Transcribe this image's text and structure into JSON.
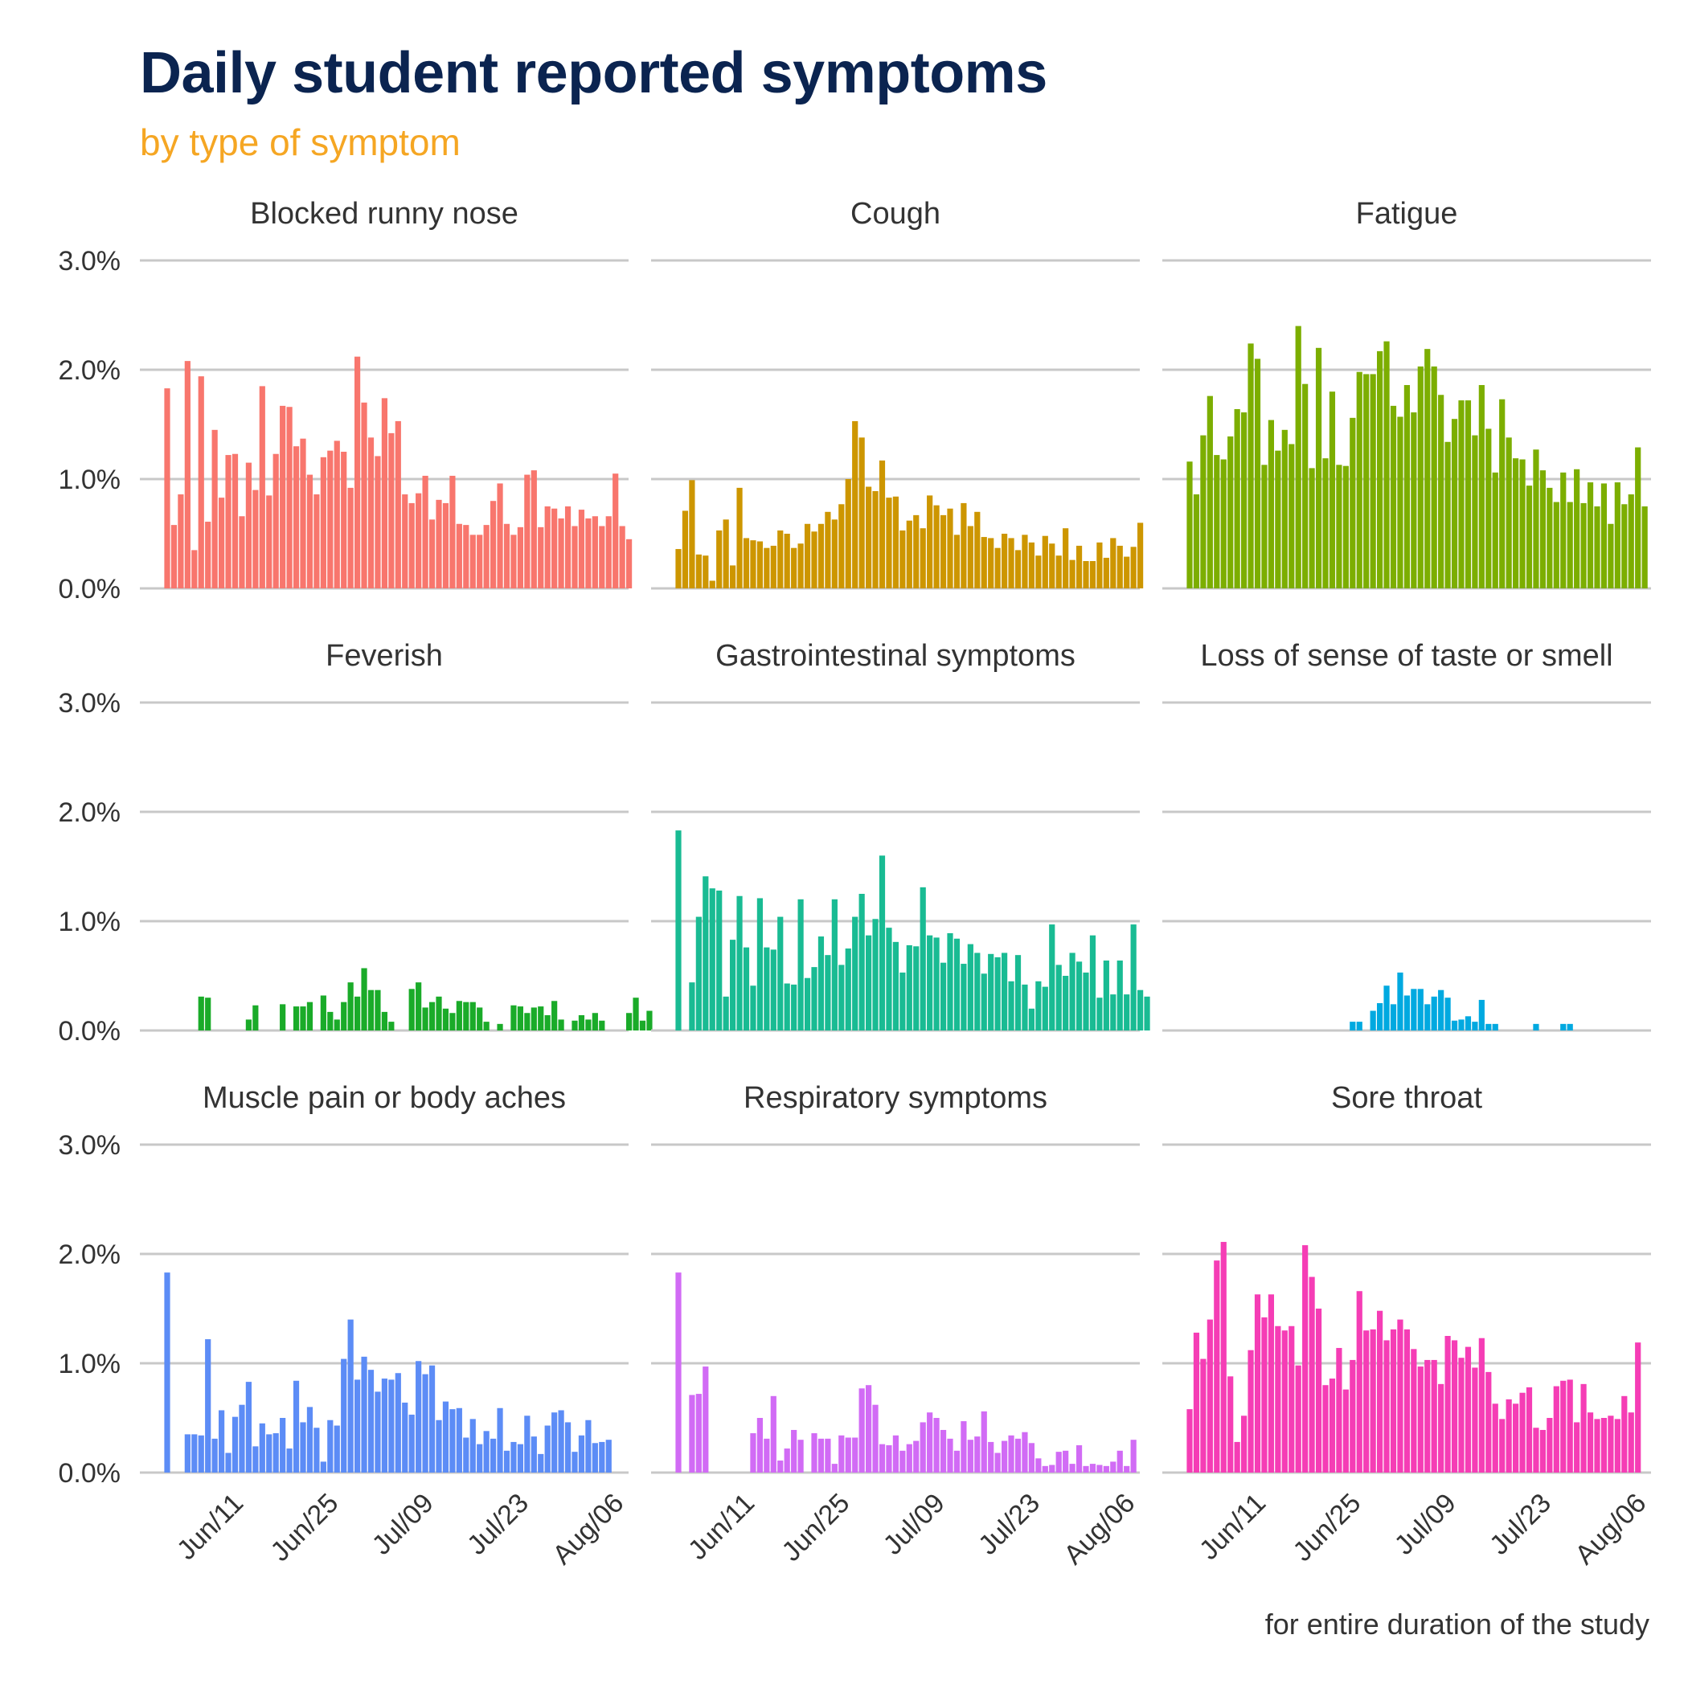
{
  "chart_data": {
    "type": "bar",
    "title": "Daily student reported symptoms",
    "subtitle": "by type of symptom",
    "caption": "for entire duration of the study",
    "x_axis": {
      "start_date": "2020-06-01",
      "tick_dates": [
        "2020-06-11",
        "2020-06-25",
        "2020-07-09",
        "2020-07-23",
        "2020-08-06"
      ],
      "tick_labels": [
        "Jun/11",
        "Jun/25",
        "Jul/09",
        "Jul/23",
        "Aug/06"
      ]
    },
    "y_axis": {
      "ylim": [
        0,
        3.0
      ],
      "tick_values": [
        0,
        1,
        2,
        3
      ],
      "tick_labels": [
        "0.0%",
        "1.0%",
        "2.0%",
        "3.0%"
      ],
      "unit": "%"
    },
    "grid": "horizontal",
    "panels": [
      {
        "name": "Blocked runny nose",
        "color": "#F8766D",
        "values": [
          1.83,
          0.58,
          0.86,
          2.08,
          0.35,
          1.94,
          0.61,
          1.45,
          0.83,
          1.22,
          1.23,
          0.66,
          1.15,
          0.9,
          1.85,
          0.85,
          1.23,
          1.67,
          1.66,
          1.3,
          1.37,
          1.04,
          0.86,
          1.2,
          1.26,
          1.35,
          1.25,
          0.92,
          2.12,
          1.7,
          1.38,
          1.21,
          1.74,
          1.42,
          1.53,
          0.86,
          0.78,
          0.87,
          1.03,
          0.63,
          0.81,
          0.78,
          1.03,
          0.59,
          0.58,
          0.49,
          0.49,
          0.58,
          0.8,
          0.96,
          0.59,
          0.49,
          0.56,
          1.04,
          1.08,
          0.56,
          0.75,
          0.73,
          0.64,
          0.75,
          0.57,
          0.72,
          0.64,
          0.66,
          0.57,
          0.66,
          1.05,
          0.57,
          0.45
        ]
      },
      {
        "name": "Cough",
        "color": "#CD9600",
        "values": [
          0.36,
          0.71,
          0.99,
          0.31,
          0.3,
          0.07,
          0.53,
          0.63,
          0.21,
          0.92,
          0.46,
          0.44,
          0.43,
          0.37,
          0.39,
          0.53,
          0.5,
          0.37,
          0.41,
          0.59,
          0.52,
          0.59,
          0.7,
          0.63,
          0.77,
          1.0,
          1.53,
          1.38,
          0.93,
          0.89,
          1.17,
          0.83,
          0.84,
          0.53,
          0.62,
          0.67,
          0.55,
          0.85,
          0.76,
          0.67,
          0.73,
          0.49,
          0.78,
          0.57,
          0.7,
          0.47,
          0.46,
          0.37,
          0.5,
          0.46,
          0.35,
          0.49,
          0.42,
          0.3,
          0.48,
          0.41,
          0.3,
          0.55,
          0.26,
          0.39,
          0.25,
          0.25,
          0.42,
          0.28,
          0.46,
          0.39,
          0.29,
          0.38,
          0.6
        ]
      },
      {
        "name": "Fatigue",
        "color": "#7CAE00",
        "values": [
          1.16,
          0.86,
          1.4,
          1.76,
          1.22,
          1.18,
          1.39,
          1.64,
          1.61,
          2.24,
          2.1,
          1.13,
          1.54,
          1.26,
          1.45,
          1.32,
          2.4,
          1.87,
          1.1,
          2.2,
          1.19,
          1.8,
          1.13,
          1.12,
          1.56,
          1.98,
          1.96,
          1.96,
          2.17,
          2.26,
          1.67,
          1.57,
          1.86,
          1.61,
          2.03,
          2.19,
          2.03,
          1.77,
          1.34,
          1.55,
          1.72,
          1.72,
          1.4,
          1.86,
          1.46,
          1.06,
          1.73,
          1.38,
          1.19,
          1.18,
          0.94,
          1.27,
          1.08,
          0.92,
          0.79,
          1.06,
          0.79,
          1.09,
          0.78,
          0.97,
          0.75,
          0.96,
          0.59,
          0.97,
          0.77,
          0.86,
          1.29,
          0.75
        ]
      },
      {
        "name": "Feverish",
        "color": "#1AAB29",
        "values": [
          0,
          0,
          0,
          0,
          0,
          0.31,
          0.3,
          0,
          0,
          0,
          0,
          0,
          0.1,
          0.23,
          0,
          0,
          0,
          0.24,
          0,
          0.22,
          0.22,
          0.26,
          0,
          0.32,
          0.17,
          0.1,
          0.26,
          0.44,
          0.31,
          0.57,
          0.37,
          0.37,
          0.17,
          0.08,
          0,
          0,
          0.38,
          0.44,
          0.21,
          0.26,
          0.31,
          0.2,
          0.16,
          0.27,
          0.26,
          0.26,
          0.21,
          0.08,
          0,
          0.06,
          0,
          0.23,
          0.22,
          0.16,
          0.21,
          0.22,
          0.14,
          0.27,
          0.1,
          0,
          0.09,
          0.14,
          0.1,
          0.16,
          0.09,
          0,
          0,
          0,
          0.16,
          0.3,
          0.09,
          0.18
        ]
      },
      {
        "name": "Gastrointestinal symptoms",
        "color": "#19BB93",
        "values": [
          1.83,
          0,
          0.44,
          1.04,
          1.41,
          1.3,
          1.28,
          0.31,
          0.83,
          1.23,
          0.76,
          0.41,
          1.21,
          0.76,
          0.74,
          1.04,
          0.43,
          0.42,
          1.2,
          0.48,
          0.58,
          0.86,
          0.69,
          1.2,
          0.6,
          0.75,
          1.04,
          1.25,
          0.87,
          1.02,
          1.6,
          0.94,
          0.81,
          0.53,
          0.78,
          0.77,
          1.31,
          0.87,
          0.85,
          0.62,
          0.89,
          0.84,
          0.61,
          0.79,
          0.71,
          0.52,
          0.7,
          0.67,
          0.71,
          0.45,
          0.69,
          0.42,
          0.2,
          0.45,
          0.4,
          0.97,
          0.6,
          0.5,
          0.71,
          0.63,
          0.53,
          0.87,
          0.3,
          0.64,
          0.33,
          0.64,
          0.33,
          0.97,
          0.37,
          0.31
        ]
      },
      {
        "name": "Loss of sense of taste or smell",
        "color": "#00A9E0",
        "values": [
          0,
          0,
          0,
          0,
          0,
          0,
          0,
          0,
          0,
          0,
          0,
          0,
          0,
          0,
          0,
          0,
          0,
          0,
          0,
          0,
          0,
          0,
          0,
          0,
          0.08,
          0.08,
          0,
          0.18,
          0.25,
          0.41,
          0.24,
          0.53,
          0.32,
          0.38,
          0.38,
          0.24,
          0.31,
          0.37,
          0.3,
          0.09,
          0.1,
          0.13,
          0.08,
          0.28,
          0.06,
          0.06,
          0,
          0,
          0,
          0,
          0,
          0.06,
          0,
          0,
          0,
          0.06,
          0.06
        ]
      },
      {
        "name": "Muscle pain or body aches",
        "color": "#5C8CF6",
        "values": [
          1.83,
          0,
          0,
          0.35,
          0.35,
          0.34,
          1.22,
          0.31,
          0.57,
          0.18,
          0.51,
          0.62,
          0.83,
          0.24,
          0.45,
          0.35,
          0.36,
          0.5,
          0.22,
          0.84,
          0.46,
          0.6,
          0.41,
          0.1,
          0.48,
          0.43,
          1.04,
          1.4,
          0.85,
          1.06,
          0.94,
          0.74,
          0.86,
          0.85,
          0.91,
          0.64,
          0.53,
          1.02,
          0.9,
          0.98,
          0.48,
          0.65,
          0.58,
          0.59,
          0.32,
          0.49,
          0.26,
          0.38,
          0.31,
          0.59,
          0.2,
          0.28,
          0.26,
          0.52,
          0.33,
          0.17,
          0.43,
          0.55,
          0.57,
          0.46,
          0.19,
          0.34,
          0.48,
          0.27,
          0.28,
          0.3
        ]
      },
      {
        "name": "Respiratory symptoms",
        "color": "#D16BF5",
        "values": [
          1.83,
          0,
          0.71,
          0.72,
          0.97,
          0,
          0,
          0,
          0,
          0,
          0,
          0.36,
          0.5,
          0.31,
          0.7,
          0.11,
          0.22,
          0.39,
          0.3,
          0,
          0.36,
          0.31,
          0.31,
          0.08,
          0.34,
          0.32,
          0.32,
          0.77,
          0.8,
          0.62,
          0.26,
          0.25,
          0.34,
          0.2,
          0.26,
          0.29,
          0.46,
          0.55,
          0.5,
          0.39,
          0.31,
          0.2,
          0.47,
          0.3,
          0.33,
          0.56,
          0.28,
          0.18,
          0.29,
          0.34,
          0.31,
          0.37,
          0.27,
          0.13,
          0.06,
          0.07,
          0.19,
          0.2,
          0.08,
          0.25,
          0.06,
          0.08,
          0.07,
          0.06,
          0.1,
          0.2,
          0.06,
          0.3
        ]
      },
      {
        "name": "Sore throat",
        "color": "#F53DB5",
        "values": [
          0.58,
          1.28,
          1.04,
          1.4,
          1.94,
          2.11,
          0.88,
          0.28,
          0.52,
          1.12,
          1.63,
          1.42,
          1.63,
          1.34,
          1.3,
          1.34,
          0.98,
          2.08,
          1.79,
          1.5,
          0.8,
          0.86,
          1.14,
          0.76,
          1.03,
          1.66,
          1.3,
          1.31,
          1.48,
          1.21,
          1.31,
          1.4,
          1.31,
          1.13,
          0.97,
          1.03,
          1.03,
          0.81,
          1.25,
          1.21,
          1.05,
          1.15,
          0.96,
          1.23,
          0.92,
          0.63,
          0.49,
          0.67,
          0.63,
          0.73,
          0.78,
          0.41,
          0.39,
          0.5,
          0.79,
          0.84,
          0.85,
          0.46,
          0.81,
          0.55,
          0.49,
          0.5,
          0.52,
          0.49,
          0.7,
          0.55,
          1.19
        ]
      }
    ]
  }
}
